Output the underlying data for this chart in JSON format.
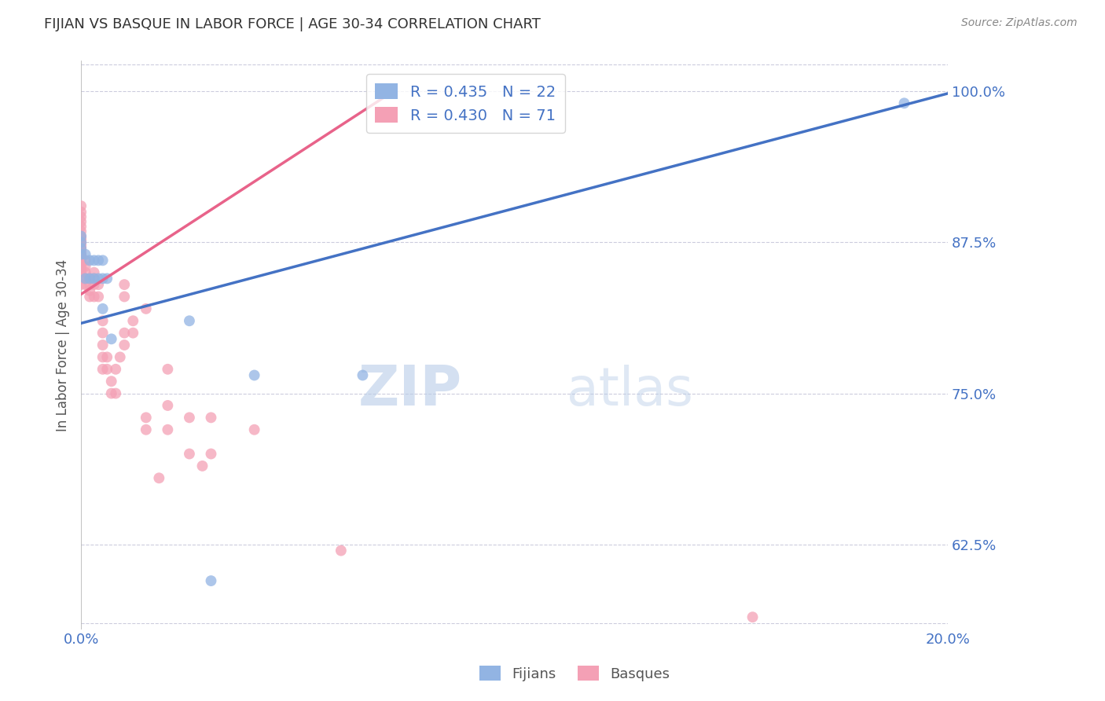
{
  "title": "FIJIAN VS BASQUE IN LABOR FORCE | AGE 30-34 CORRELATION CHART",
  "source": "Source: ZipAtlas.com",
  "ylabel": "In Labor Force | Age 30-34",
  "xlim": [
    0.0,
    0.2
  ],
  "ylim": [
    0.555,
    1.025
  ],
  "ytick_positions": [
    0.625,
    0.75,
    0.875,
    1.0
  ],
  "ytick_labels": [
    "62.5%",
    "75.0%",
    "87.5%",
    "100.0%"
  ],
  "fijian_color": "#92b4e3",
  "basque_color": "#f4a0b5",
  "fijian_line_color": "#4472c4",
  "basque_line_color": "#e8638a",
  "legend_R_fijian": "R = 0.435",
  "legend_N_fijian": "N = 22",
  "legend_R_basque": "R = 0.430",
  "legend_N_basque": "N = 71",
  "fijian_x": [
    0.0,
    0.0,
    0.0,
    0.0,
    0.001,
    0.001,
    0.002,
    0.002,
    0.003,
    0.003,
    0.004,
    0.004,
    0.005,
    0.005,
    0.005,
    0.006,
    0.007,
    0.025,
    0.03,
    0.04,
    0.065,
    0.19
  ],
  "fijian_y": [
    0.865,
    0.87,
    0.875,
    0.88,
    0.845,
    0.865,
    0.845,
    0.86,
    0.845,
    0.86,
    0.845,
    0.86,
    0.82,
    0.845,
    0.86,
    0.845,
    0.795,
    0.81,
    0.595,
    0.765,
    0.765,
    0.99
  ],
  "basque_x": [
    0.0,
    0.0,
    0.0,
    0.0,
    0.0,
    0.0,
    0.0,
    0.0,
    0.0,
    0.0,
    0.0,
    0.0,
    0.0,
    0.0,
    0.0,
    0.0,
    0.0,
    0.0,
    0.0,
    0.0,
    0.0,
    0.0,
    0.0,
    0.001,
    0.001,
    0.001,
    0.001,
    0.001,
    0.002,
    0.002,
    0.002,
    0.002,
    0.003,
    0.003,
    0.003,
    0.003,
    0.004,
    0.004,
    0.005,
    0.005,
    0.005,
    0.005,
    0.005,
    0.006,
    0.006,
    0.007,
    0.007,
    0.008,
    0.008,
    0.009,
    0.01,
    0.01,
    0.01,
    0.01,
    0.012,
    0.012,
    0.015,
    0.015,
    0.015,
    0.018,
    0.02,
    0.02,
    0.02,
    0.025,
    0.025,
    0.028,
    0.03,
    0.03,
    0.04,
    0.06,
    0.155
  ],
  "basque_y": [
    0.84,
    0.845,
    0.85,
    0.852,
    0.855,
    0.858,
    0.86,
    0.862,
    0.864,
    0.866,
    0.868,
    0.87,
    0.872,
    0.874,
    0.876,
    0.878,
    0.88,
    0.884,
    0.888,
    0.892,
    0.896,
    0.9,
    0.905,
    0.84,
    0.845,
    0.85,
    0.855,
    0.86,
    0.83,
    0.835,
    0.84,
    0.845,
    0.83,
    0.84,
    0.845,
    0.85,
    0.83,
    0.84,
    0.77,
    0.78,
    0.79,
    0.8,
    0.81,
    0.77,
    0.78,
    0.75,
    0.76,
    0.75,
    0.77,
    0.78,
    0.79,
    0.8,
    0.83,
    0.84,
    0.8,
    0.81,
    0.72,
    0.73,
    0.82,
    0.68,
    0.72,
    0.74,
    0.77,
    0.7,
    0.73,
    0.69,
    0.7,
    0.73,
    0.72,
    0.62,
    0.565
  ],
  "fijian_line_x": [
    0.0,
    0.2
  ],
  "fijian_line_y": [
    0.808,
    0.998
  ],
  "basque_line_x": [
    0.0,
    0.07
  ],
  "basque_line_y": [
    0.832,
    0.995
  ],
  "background_color": "#ffffff",
  "grid_color": "#ccccdd",
  "title_color": "#333333",
  "axis_label_color": "#555555",
  "tick_label_color": "#4472c4",
  "watermark_zip": "ZIP",
  "watermark_atlas": "atlas",
  "marker_size": 10,
  "alpha": 0.75
}
